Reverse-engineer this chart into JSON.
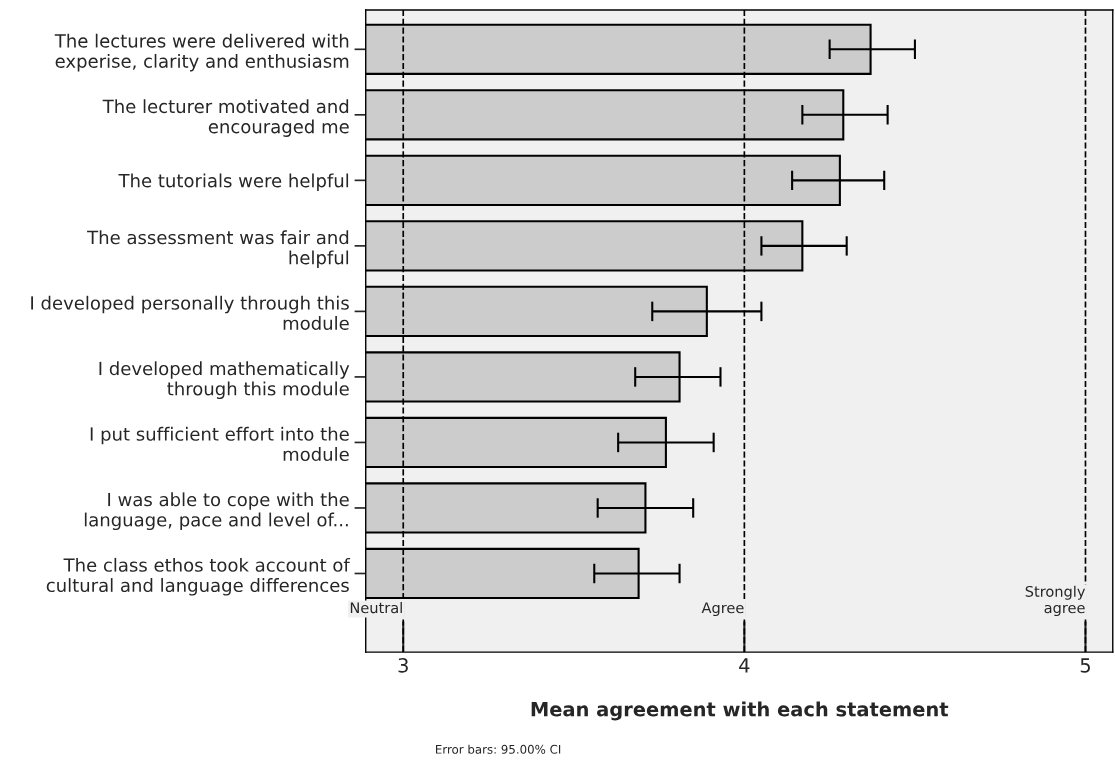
{
  "chart_data": {
    "type": "bar",
    "orientation": "horizontal",
    "xlabel": "Mean agreement with each statement",
    "categories": [
      "The lectures were delivered with\nexperise, clarity and enthusiasm",
      "The lecturer motivated and\nencouraged me",
      "The tutorials were helpful",
      "The assessment was fair and\nhelpful",
      "I developed personally through this\nmodule",
      "I developed mathematically\nthrough this module",
      "I put sufficient effort into the\nmodule",
      "I was able to cope with the\nlanguage, pace and level of...",
      "The class ethos took account of\ncultural and language differences"
    ],
    "series": [
      {
        "color": "#cccccc",
        "values": [
          4.37,
          4.29,
          4.28,
          4.17,
          3.89,
          3.81,
          3.77,
          3.71,
          3.69
        ],
        "errors": [
          [
            4.25,
            4.5
          ],
          [
            4.17,
            4.42
          ],
          [
            4.14,
            4.41
          ],
          [
            4.05,
            4.3
          ],
          [
            3.73,
            4.05
          ],
          [
            3.68,
            3.93
          ],
          [
            3.63,
            3.91
          ],
          [
            3.57,
            3.85
          ],
          [
            3.56,
            3.81
          ]
        ]
      }
    ],
    "xlim": [
      2.89,
      5.08
    ],
    "xticks": [
      3,
      4,
      5
    ],
    "ref_lines": [
      {
        "axis": "x",
        "value": 3,
        "label": "Neutral",
        "line_style": "dashed"
      },
      {
        "axis": "x",
        "value": 4,
        "label": "Agree",
        "line_style": "dashed"
      },
      {
        "axis": "x",
        "value": 5,
        "label": "Strongly\nagree",
        "line_style": "dashed"
      }
    ],
    "annotations": [
      "Error bars: 95.00% CI"
    ],
    "grid": false,
    "legend": false
  }
}
